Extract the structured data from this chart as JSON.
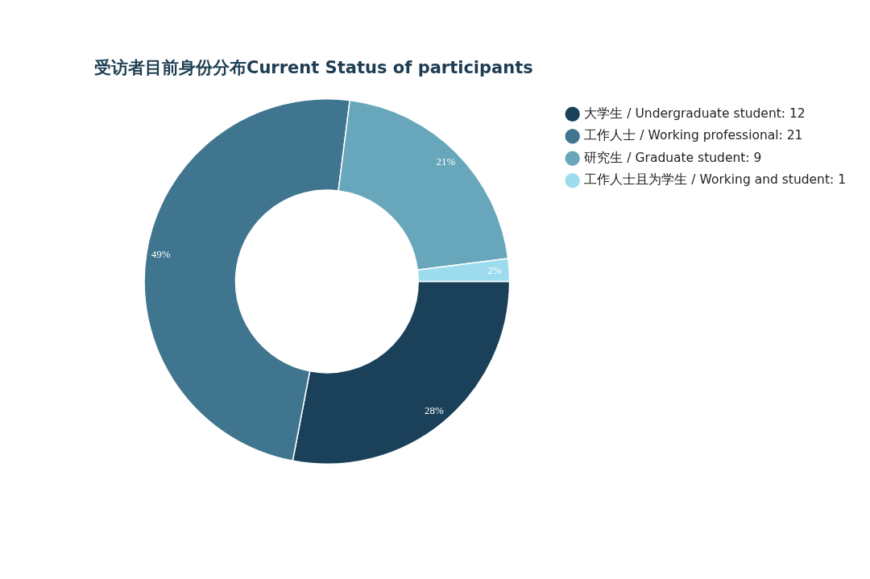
{
  "chart_data": {
    "type": "donut",
    "title": "受访者目前身份分布Current Status of participants",
    "categories": [
      "大学生 / Undergraduate student: 12",
      "工作人士 / Working professional: 21",
      "研究生 / Graduate student: 9",
      "工作人士且为学生 / Working and student: 1"
    ],
    "values": [
      28,
      49,
      21,
      2
    ],
    "colors": [
      "#1a4159",
      "#3f758e",
      "#68a7bb",
      "#9ddcef"
    ],
    "value_labels": [
      "28%",
      "49%",
      "21%",
      "2%"
    ],
    "legend": "right"
  }
}
